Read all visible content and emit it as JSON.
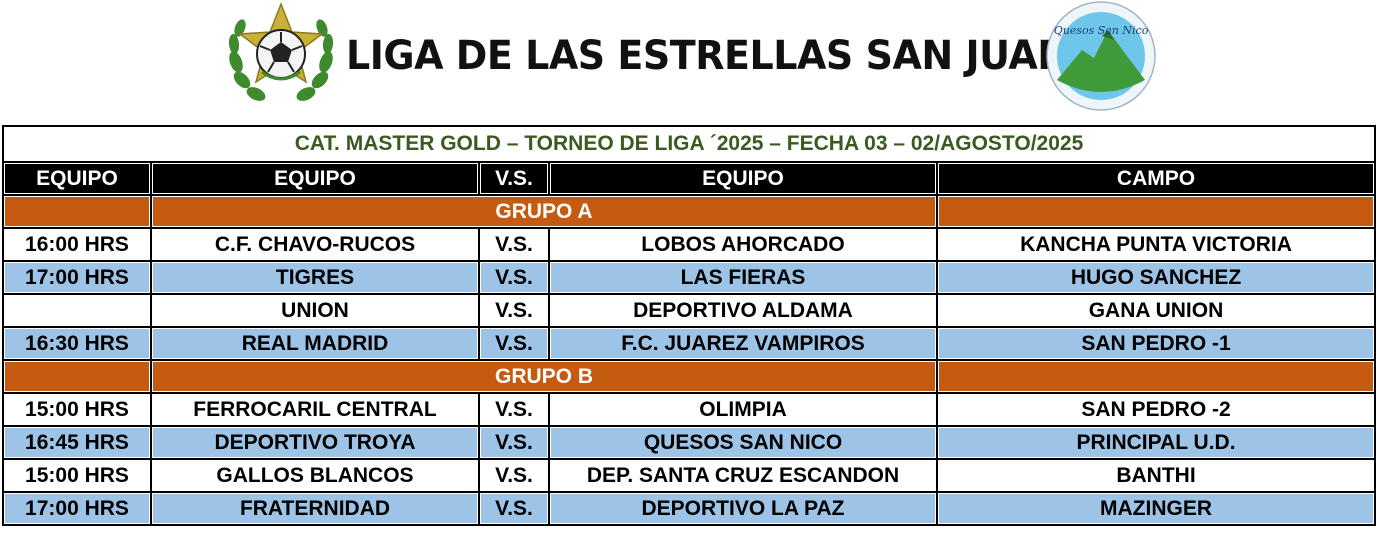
{
  "header": {
    "title": "LIGA DE LAS ESTRELLAS SAN JUAN",
    "left_logo_icon": "soccer-ball-star-laurel-icon",
    "sponsor_logo_text": "Quesos San Nico",
    "colors": {
      "laurel": "#3f8a2c",
      "star": "#c9b037",
      "mountain": "#3f9a3a",
      "sky": "#6ec6ea"
    }
  },
  "schedule": {
    "title": "CAT. MASTER GOLD – TORNEO DE LIGA ´2025 – FECHA 03 – 02/AGOSTO/2025",
    "headers": [
      "EQUIPO",
      "EQUIPO",
      "V.S.",
      "EQUIPO",
      "CAMPO"
    ],
    "groups": [
      {
        "name": "GRUPO A",
        "matches": [
          {
            "time": "16:00 HRS",
            "home": "C.F. CHAVO-RUCOS",
            "vs": "V.S.",
            "away": "LOBOS AHORCADO",
            "field": "KANCHA PUNTA VICTORIA"
          },
          {
            "time": "17:00 HRS",
            "home": "TIGRES",
            "vs": "V.S.",
            "away": "LAS FIERAS",
            "field": "HUGO SANCHEZ"
          },
          {
            "time": "",
            "home": "UNION",
            "vs": "V.S.",
            "away": "DEPORTIVO ALDAMA",
            "field": "GANA UNION"
          },
          {
            "time": "16:30 HRS",
            "home": "REAL MADRID",
            "vs": "V.S.",
            "away": "F.C. JUAREZ VAMPIROS",
            "field": "SAN PEDRO -1"
          }
        ]
      },
      {
        "name": "GRUPO B",
        "matches": [
          {
            "time": "15:00 HRS",
            "home": "FERROCARIL CENTRAL",
            "vs": "V.S.",
            "away": "OLIMPIA",
            "field": "SAN PEDRO -2"
          },
          {
            "time": "16:45 HRS",
            "home": "DEPORTIVO TROYA",
            "vs": "V.S.",
            "away": "QUESOS SAN NICO",
            "field": "PRINCIPAL U.D."
          },
          {
            "time": "15:00 HRS",
            "home": "GALLOS BLANCOS",
            "vs": "V.S.",
            "away": "DEP. SANTA CRUZ ESCANDON",
            "field": "BANTHI"
          },
          {
            "time": "17:00 HRS",
            "home": "FRATERNIDAD",
            "vs": "V.S.",
            "away": "DEPORTIVO LA PAZ",
            "field": "MAZINGER"
          }
        ]
      }
    ]
  }
}
